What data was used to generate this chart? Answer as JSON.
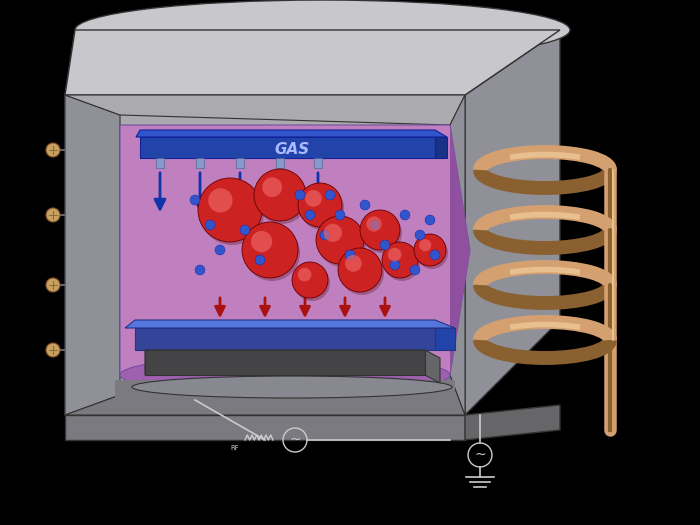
{
  "bg_color": "#000000",
  "chamber_gray": "#aaaaaf",
  "chamber_light": "#c8c8cc",
  "chamber_dark": "#7a7a80",
  "chamber_mid": "#909098",
  "inner_purple": "#c080c0",
  "inner_purple_dark": "#9050a0",
  "inner_purple_mid": "#a060b0",
  "gas_bar_top": "#3355cc",
  "gas_bar_front": "#2244aa",
  "gas_bar_side": "#1a3388",
  "gas_text_color": "#8899ee",
  "substrate_top": "#5577dd",
  "substrate_dark": "#334499",
  "pedestal_color": "#666668",
  "pedestal_dark": "#444446",
  "coil_color": "#d4a070",
  "coil_dark": "#8a6030",
  "bolt_color": "#c8a060",
  "red_ball": "#cc2222",
  "red_ball_hi": "#ee6666",
  "red_ball_dark": "#881111",
  "blue_dot": "#3355cc",
  "arrow_blue": "#1133aa",
  "arrow_red": "#aa1111",
  "outline": "#333333",
  "white": "#ffffff"
}
